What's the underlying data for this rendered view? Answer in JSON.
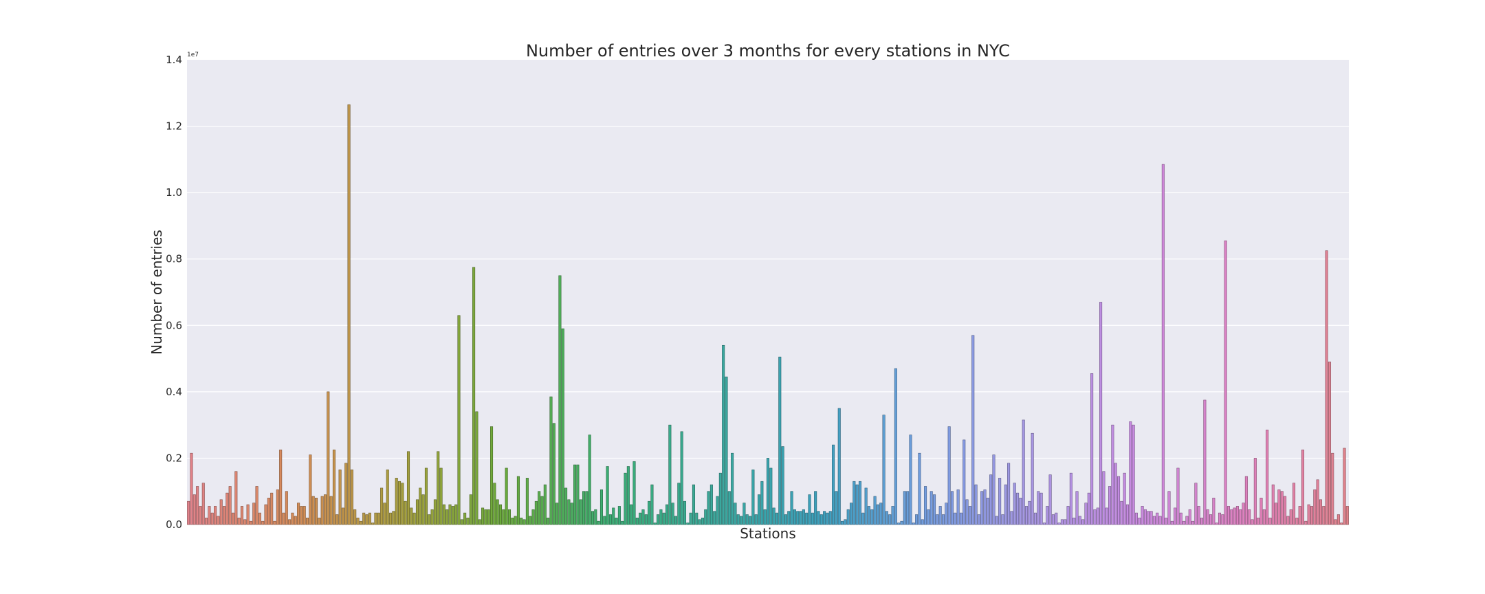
{
  "chart_data": {
    "type": "bar",
    "title": "Number of entries over 3 months for every stations in NYC",
    "xlabel": "Stations",
    "ylabel": "Number of entries",
    "y_offset_label": "1e7",
    "ylim": [
      0,
      1.4
    ],
    "yticks": [
      "0.0",
      "0.2",
      "0.4",
      "0.6",
      "0.8",
      "1.0",
      "1.2",
      "1.4"
    ],
    "grid": true,
    "palette": [
      "#e1828a",
      "#d58b58",
      "#a89f3e",
      "#6aab3c",
      "#3aae74",
      "#3aa89c",
      "#3ba0bd",
      "#739de0",
      "#a896e3",
      "#c88ae0",
      "#de80c0",
      "#e1828a"
    ],
    "values": [
      0.07,
      0.215,
      0.09,
      0.115,
      0.055,
      0.125,
      0.02,
      0.055,
      0.035,
      0.055,
      0.025,
      0.075,
      0.055,
      0.095,
      0.115,
      0.035,
      0.16,
      0.02,
      0.055,
      0.015,
      0.06,
      0.01,
      0.065,
      0.115,
      0.035,
      0.01,
      0.06,
      0.08,
      0.095,
      0.01,
      0.105,
      0.225,
      0.035,
      0.1,
      0.015,
      0.035,
      0.025,
      0.065,
      0.055,
      0.055,
      0.02,
      0.21,
      0.085,
      0.08,
      0.02,
      0.085,
      0.09,
      0.4,
      0.085,
      0.225,
      0.03,
      0.165,
      0.05,
      0.185,
      1.265,
      0.165,
      0.045,
      0.02,
      0.01,
      0.035,
      0.03,
      0.035,
      0.005,
      0.035,
      0.035,
      0.11,
      0.065,
      0.165,
      0.035,
      0.04,
      0.14,
      0.13,
      0.125,
      0.07,
      0.22,
      0.05,
      0.035,
      0.075,
      0.11,
      0.09,
      0.17,
      0.03,
      0.045,
      0.075,
      0.22,
      0.17,
      0.06,
      0.045,
      0.06,
      0.055,
      0.06,
      0.63,
      0.015,
      0.035,
      0.02,
      0.09,
      0.775,
      0.34,
      0.015,
      0.05,
      0.045,
      0.045,
      0.295,
      0.125,
      0.075,
      0.06,
      0.045,
      0.17,
      0.045,
      0.02,
      0.025,
      0.145,
      0.02,
      0.015,
      0.14,
      0.025,
      0.045,
      0.07,
      0.1,
      0.085,
      0.12,
      0.02,
      0.385,
      0.305,
      0.065,
      0.75,
      0.59,
      0.11,
      0.075,
      0.065,
      0.18,
      0.18,
      0.075,
      0.1,
      0.1,
      0.27,
      0.04,
      0.045,
      0.01,
      0.105,
      0.025,
      0.175,
      0.03,
      0.05,
      0.02,
      0.055,
      0.01,
      0.155,
      0.175,
      0.06,
      0.19,
      0.02,
      0.035,
      0.045,
      0.03,
      0.07,
      0.12,
      0.005,
      0.03,
      0.045,
      0.035,
      0.06,
      0.3,
      0.065,
      0.025,
      0.125,
      0.28,
      0.07,
      0.005,
      0.035,
      0.12,
      0.035,
      0.015,
      0.02,
      0.045,
      0.1,
      0.12,
      0.04,
      0.085,
      0.155,
      0.54,
      0.445,
      0.1,
      0.215,
      0.065,
      0.03,
      0.025,
      0.065,
      0.03,
      0.025,
      0.165,
      0.03,
      0.09,
      0.13,
      0.045,
      0.2,
      0.17,
      0.05,
      0.035,
      0.505,
      0.235,
      0.03,
      0.04,
      0.1,
      0.045,
      0.04,
      0.04,
      0.045,
      0.035,
      0.09,
      0.035,
      0.1,
      0.04,
      0.03,
      0.04,
      0.035,
      0.04,
      0.24,
      0.1,
      0.35,
      0.01,
      0.015,
      0.045,
      0.065,
      0.13,
      0.12,
      0.13,
      0.035,
      0.11,
      0.055,
      0.045,
      0.085,
      0.06,
      0.065,
      0.33,
      0.04,
      0.03,
      0.055,
      0.47,
      0.005,
      0.01,
      0.1,
      0.1,
      0.27,
      0.005,
      0.03,
      0.215,
      0.015,
      0.115,
      0.045,
      0.1,
      0.09,
      0.03,
      0.055,
      0.03,
      0.065,
      0.295,
      0.1,
      0.035,
      0.105,
      0.035,
      0.255,
      0.075,
      0.055,
      0.57,
      0.12,
      0.03,
      0.1,
      0.105,
      0.08,
      0.15,
      0.21,
      0.025,
      0.14,
      0.03,
      0.12,
      0.185,
      0.04,
      0.125,
      0.095,
      0.08,
      0.315,
      0.055,
      0.07,
      0.275,
      0.035,
      0.1,
      0.095,
      0.005,
      0.055,
      0.15,
      0.03,
      0.035,
      0.005,
      0.015,
      0.015,
      0.055,
      0.155,
      0.02,
      0.1,
      0.025,
      0.015,
      0.065,
      0.095,
      0.455,
      0.045,
      0.05,
      0.67,
      0.16,
      0.05,
      0.115,
      0.3,
      0.185,
      0.145,
      0.07,
      0.155,
      0.06,
      0.31,
      0.3,
      0.035,
      0.02,
      0.055,
      0.045,
      0.04,
      0.04,
      0.025,
      0.035,
      0.025,
      1.085,
      0.02,
      0.1,
      0.01,
      0.05,
      0.17,
      0.035,
      0.01,
      0.025,
      0.045,
      0.01,
      0.125,
      0.055,
      0.02,
      0.375,
      0.045,
      0.03,
      0.08,
      0.005,
      0.035,
      0.03,
      0.855,
      0.055,
      0.045,
      0.05,
      0.055,
      0.045,
      0.065,
      0.145,
      0.045,
      0.015,
      0.2,
      0.02,
      0.08,
      0.045,
      0.285,
      0.02,
      0.12,
      0.065,
      0.105,
      0.1,
      0.085,
      0.025,
      0.045,
      0.125,
      0.02,
      0.055,
      0.225,
      0.01,
      0.06,
      0.055,
      0.105,
      0.135,
      0.075,
      0.055,
      0.825,
      0.49,
      0.215,
      0.015,
      0.03,
      0.005,
      0.23,
      0.055
    ]
  }
}
